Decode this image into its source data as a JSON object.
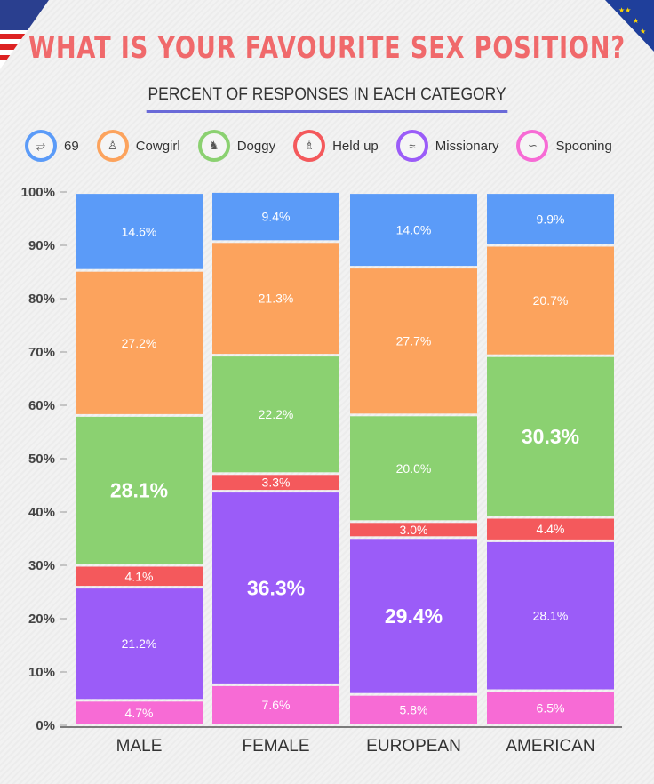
{
  "title": "WHAT IS YOUR FAVOURITE SEX POSITION?",
  "subtitle": "PERCENT OF RESPONSES IN EACH CATEGORY",
  "corner_flags": {
    "left": "us-flag-icon",
    "right": "eu-flag-icon"
  },
  "chart_data": {
    "type": "bar",
    "stacked": true,
    "categories": [
      "MALE",
      "FEMALE",
      "EUROPEAN",
      "AMERICAN"
    ],
    "series": [
      {
        "name": "Spooning",
        "color": "#f76bd5",
        "icon": "spooning-icon",
        "values": [
          4.7,
          7.6,
          5.8,
          6.5
        ]
      },
      {
        "name": "Missionary",
        "color": "#9b5cf8",
        "icon": "missionary-icon",
        "values": [
          21.2,
          36.3,
          29.4,
          28.1
        ]
      },
      {
        "name": "Held up",
        "color": "#f4595c",
        "icon": "held-up-icon",
        "values": [
          4.1,
          3.3,
          3.0,
          4.4
        ]
      },
      {
        "name": "Doggy",
        "color": "#8bd171",
        "icon": "doggy-icon",
        "values": [
          28.1,
          22.2,
          20.0,
          30.3
        ]
      },
      {
        "name": "Cowgirl",
        "color": "#fca35d",
        "icon": "cowgirl-icon",
        "values": [
          27.2,
          21.3,
          27.7,
          20.7
        ]
      },
      {
        "name": "69",
        "color": "#5b9bf8",
        "icon": "69-icon",
        "values": [
          14.6,
          9.4,
          14.0,
          9.9
        ]
      }
    ],
    "legend_order": [
      "69",
      "Cowgirl",
      "Doggy",
      "Held up",
      "Missionary",
      "Spooning"
    ],
    "highlighted_labels": [
      [
        0,
        3
      ],
      [
        1,
        1
      ],
      [
        2,
        1
      ],
      [
        3,
        3
      ]
    ],
    "yticks": [
      "0%",
      "10%",
      "20%",
      "30%",
      "40%",
      "50%",
      "60%",
      "70%",
      "80%",
      "90%",
      "100%"
    ],
    "ylim": [
      0,
      100
    ],
    "xlabel": "",
    "ylabel": "",
    "legend_position": "top",
    "grid": false
  }
}
